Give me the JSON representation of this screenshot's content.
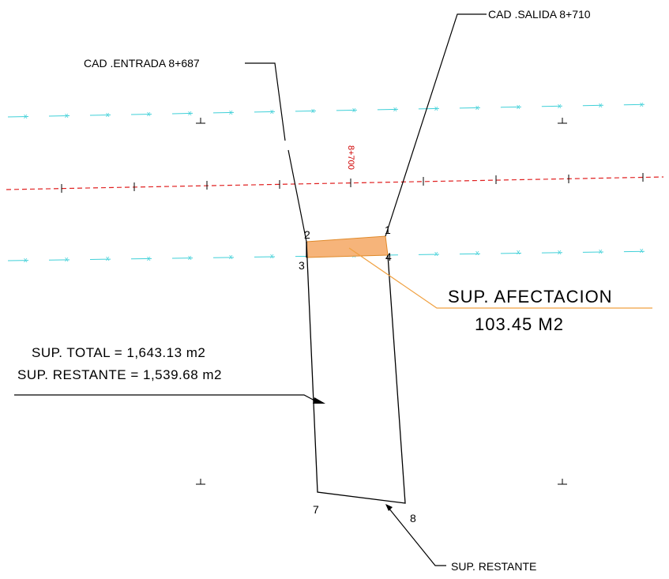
{
  "labels": {
    "entrada": "CAD .ENTRADA 8+687",
    "salida": "CAD .SALIDA 8+710",
    "station": "8+700",
    "sup_afectacion_title": "SUP. AFECTACION",
    "sup_afectacion_value": "103.45  M2",
    "sup_total": "SUP.  TOTAL  =  1,643.13  m2",
    "sup_restante_line": "SUP.  RESTANTE  =  1,539.68  m2",
    "sup_restante": "SUP. RESTANTE"
  },
  "vertices": {
    "p1": "1",
    "p2": "2",
    "p3": "3",
    "p4": "4",
    "p7": "7",
    "p8": "8"
  },
  "colors": {
    "centerline": "#e02020",
    "fence": "#40d0d8",
    "affected_fill": "#f6b47a",
    "affected_stroke": "#e08a2a",
    "leader_orange": "#f0a040",
    "outline": "#000000"
  }
}
